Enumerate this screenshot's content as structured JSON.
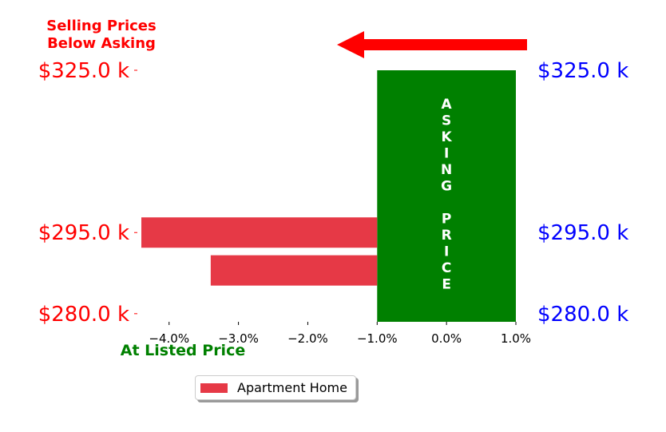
{
  "colors": {
    "left_price_labels": "#ff0000",
    "right_price_labels": "#0000ff",
    "bars": "#e63946",
    "asking_band": "#008000",
    "arrow": "#ff0000",
    "top_left_note": "#ff0000",
    "bottom_note": "#008000",
    "asking_text": "#ffffff"
  },
  "chart_data": {
    "type": "bar",
    "orientation": "horizontal",
    "x_ticks": [
      "−4.0%",
      "−3.0%",
      "−2.0%",
      "−1.0%",
      "0.0%",
      "1.0%"
    ],
    "x_tick_values": [
      -4.0,
      -3.0,
      -2.0,
      -1.0,
      0.0,
      1.0
    ],
    "xlim": [
      -4.4,
      1.0
    ],
    "ylim": [
      278.5,
      325
    ],
    "y_tick_values": [
      325,
      295,
      280
    ],
    "y_ticks_left": [
      "$325.0 k",
      "$295.0 k",
      "$280.0 k"
    ],
    "y_ticks_right": [
      "$325.0 k",
      "$295.0 k",
      "$280.0 k"
    ],
    "series": [
      {
        "name": "Apartment Home",
        "bars": [
          {
            "y": 295,
            "start": -1.0,
            "value": -4.4
          },
          {
            "y": 288,
            "start": -1.0,
            "value": -3.4
          }
        ]
      }
    ],
    "asking_band": {
      "x_range": [
        -1.0,
        1.0
      ],
      "label_words": [
        "ASKING",
        "PRICE"
      ]
    },
    "annotations": {
      "top_left_note": [
        "Selling Prices",
        "Below Asking"
      ],
      "bottom_note": "At Listed Price"
    },
    "legend": {
      "placement": "bottom-center",
      "entries": [
        "Apartment Home"
      ]
    },
    "grid": false
  }
}
